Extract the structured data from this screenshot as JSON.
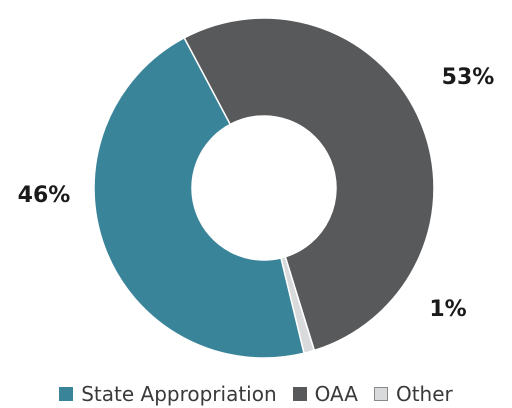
{
  "chart_data": {
    "type": "pie",
    "title": "",
    "donut": true,
    "slices": [
      {
        "label": "OAA",
        "value": 53,
        "display": "53%",
        "color": "#58595b"
      },
      {
        "label": "Other",
        "value": 1,
        "display": "1%",
        "color": "#d9dadb"
      },
      {
        "label": "State Appropriation",
        "value": 46,
        "display": "46%",
        "color": "#3a8499"
      }
    ],
    "legend": {
      "placement": "bottom",
      "items": [
        {
          "label": "State Appropriation",
          "color": "#3a8499"
        },
        {
          "label": "OAA",
          "color": "#58595b"
        },
        {
          "label": "Other",
          "color": "#d9dadb"
        }
      ]
    }
  }
}
